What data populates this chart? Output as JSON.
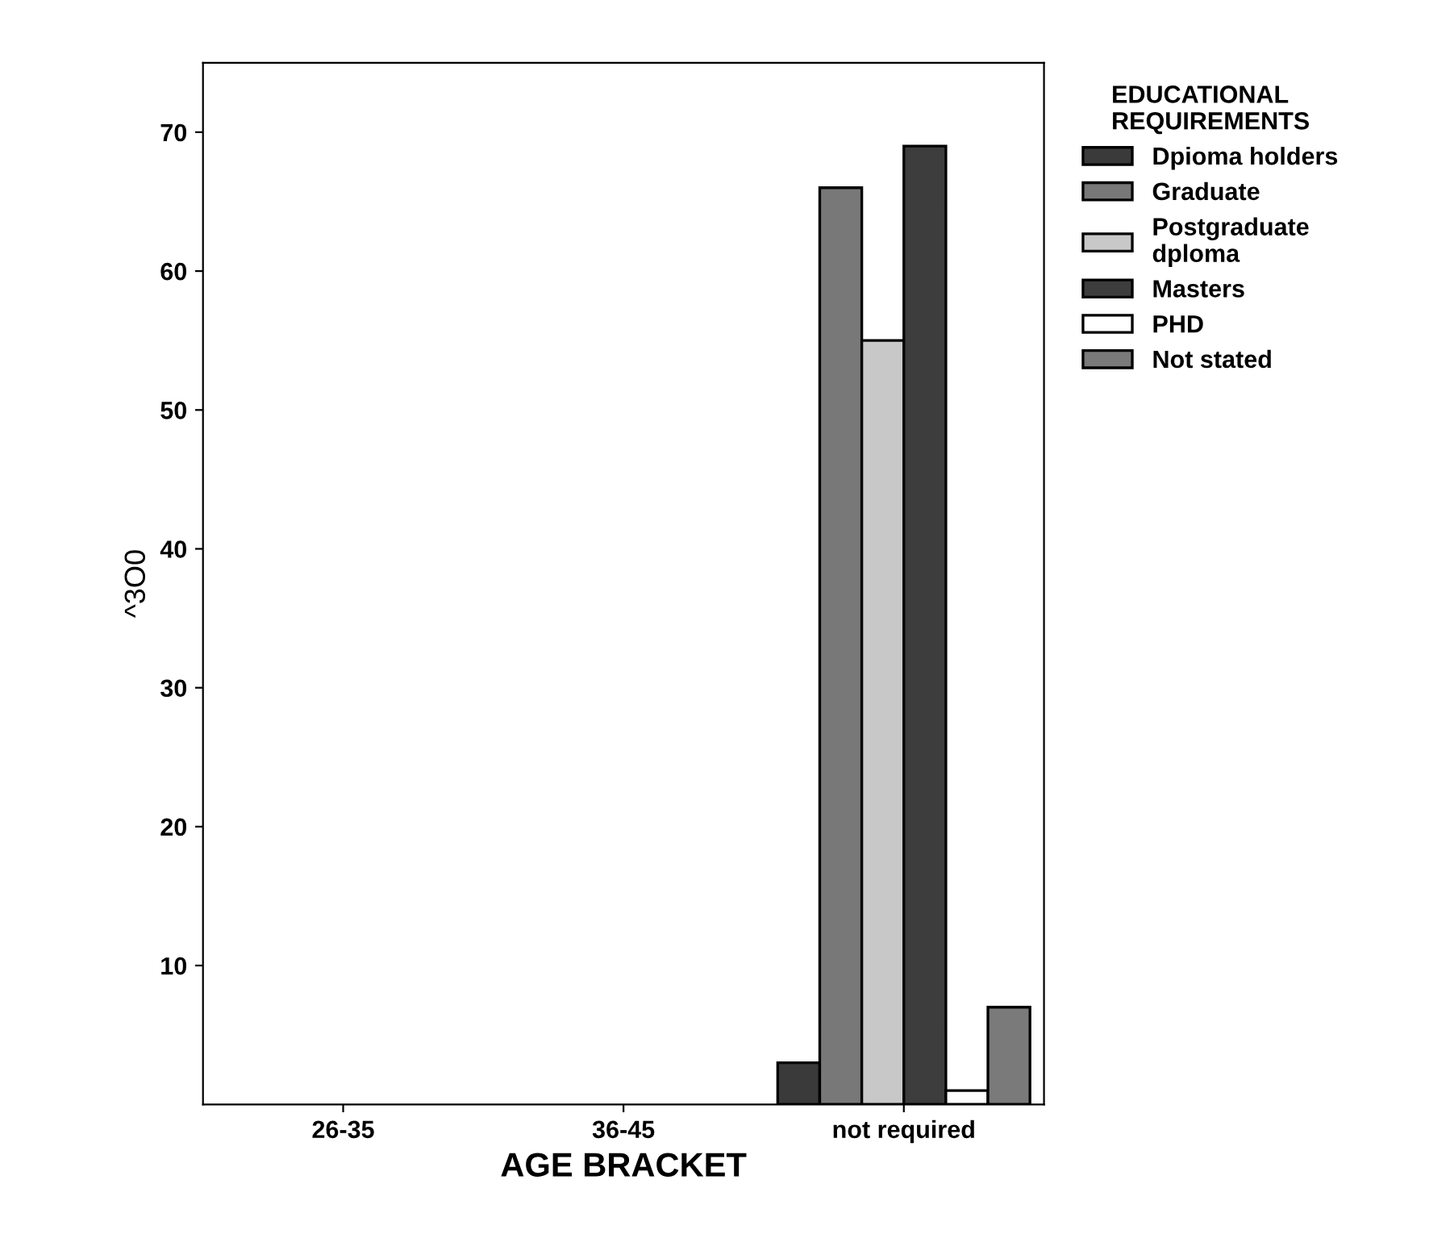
{
  "chart_data": {
    "type": "bar",
    "categories": [
      "26-35",
      "36-45",
      "not required"
    ],
    "xlabel": "AGE BRACKET",
    "ylabel": "^3O0",
    "legend_title": "EDUCATIONAL\nREQUIREMENTS",
    "legend": "right",
    "series": [
      {
        "name": "Dpioma holders",
        "color": "#3a3a3a",
        "values": [
          null,
          null,
          3
        ]
      },
      {
        "name": "Graduate",
        "color": "#787878",
        "values": [
          null,
          null,
          66
        ]
      },
      {
        "name": "Postgraduate\ndploma",
        "color": "#c8c8c8",
        "values": [
          null,
          null,
          55
        ]
      },
      {
        "name": "Masters",
        "color": "#3d3d3d",
        "values": [
          null,
          null,
          69
        ]
      },
      {
        "name": "PHD",
        "color": "#ffffff",
        "values": [
          null,
          null,
          1
        ]
      },
      {
        "name": "Not stated",
        "color": "#7a7a7a",
        "values": [
          null,
          null,
          7
        ]
      }
    ],
    "ylim": [
      0,
      75
    ],
    "yticks": [
      10,
      20,
      30,
      40,
      50,
      60,
      70
    ],
    "grid": false
  }
}
